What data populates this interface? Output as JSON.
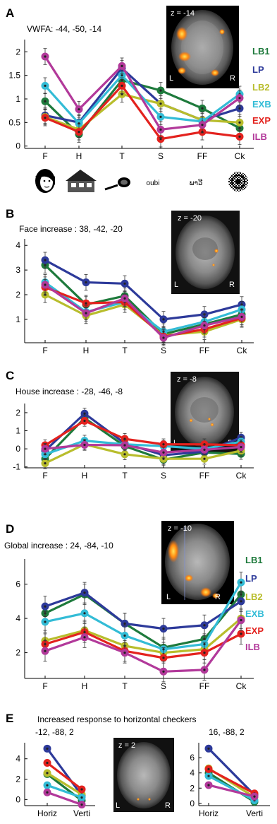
{
  "colors": {
    "LB1": "#1e7a3c",
    "LP": "#2d3a9a",
    "LB2": "#b8bd2c",
    "EXB": "#33bcd6",
    "EXP": "#e3221e",
    "ILB": "#b2399a"
  },
  "stim_icons": [
    "face-icon",
    "house-icon",
    "tool-icon",
    "oubi",
    "ພາວີ",
    "checkerboard-icon"
  ],
  "chart_data": [
    {
      "id": "A",
      "type": "line",
      "letter": "A",
      "title": "VWFA: -44, -50, -14",
      "brain_label": "z = -14",
      "brain_L": "L",
      "brain_R": "R",
      "categories": [
        "F",
        "H",
        "T",
        "S",
        "FF",
        "Ck"
      ],
      "yticks": [
        "0",
        "0.5",
        "1",
        "1.5",
        "2"
      ],
      "ylim": [
        -0.05,
        2.2
      ],
      "legend": [
        "LB1",
        "LP",
        "LB2",
        "EXB",
        "EXP",
        "ILB"
      ],
      "series": [
        {
          "name": "LB1",
          "values": [
            0.95,
            0.25,
            1.4,
            1.18,
            0.8,
            0.38
          ]
        },
        {
          "name": "LP",
          "values": [
            0.65,
            0.5,
            1.65,
            0.9,
            0.55,
            0.8
          ]
        },
        {
          "name": "LB2",
          "values": [
            0.62,
            0.35,
            1.1,
            0.9,
            0.55,
            0.5
          ]
        },
        {
          "name": "EXB",
          "values": [
            1.28,
            0.48,
            1.5,
            0.62,
            0.52,
            1.1
          ]
        },
        {
          "name": "EXP",
          "values": [
            0.6,
            0.3,
            1.28,
            0.15,
            0.3,
            0.2
          ]
        },
        {
          "name": "ILB",
          "values": [
            1.9,
            0.78,
            1.7,
            0.35,
            0.45,
            1.02
          ]
        }
      ]
    },
    {
      "id": "B",
      "type": "line",
      "letter": "B",
      "title": "Face increase : 38, -42, -20",
      "brain_label": "z = -20",
      "brain_L": "L",
      "brain_R": "R",
      "categories": [
        "F",
        "H",
        "T",
        "S",
        "FF",
        "Ck"
      ],
      "yticks": [
        "1",
        "2",
        "3",
        "4"
      ],
      "ylim": [
        0.05,
        4.15
      ],
      "legend": [],
      "series": [
        {
          "name": "LB1",
          "values": [
            3.2,
            1.6,
            1.95,
            0.4,
            0.8,
            1.2
          ]
        },
        {
          "name": "LP",
          "values": [
            3.4,
            2.5,
            2.45,
            1.0,
            1.2,
            1.6
          ]
        },
        {
          "name": "LB2",
          "values": [
            2.0,
            1.15,
            1.6,
            0.35,
            0.5,
            1.0
          ]
        },
        {
          "name": "EXB",
          "values": [
            2.5,
            1.3,
            1.7,
            0.5,
            0.9,
            1.4
          ]
        },
        {
          "name": "EXP",
          "values": [
            2.3,
            1.65,
            1.7,
            0.3,
            0.6,
            1.05
          ]
        },
        {
          "name": "ILB",
          "values": [
            2.4,
            1.25,
            1.85,
            0.25,
            0.75,
            1.1
          ]
        }
      ]
    },
    {
      "id": "C",
      "type": "line",
      "letter": "C",
      "title": "House increase : -28, -46, -8",
      "brain_label": "z = -8",
      "brain_L": "L",
      "brain_R": "R",
      "categories": [
        "F",
        "H",
        "T",
        "S",
        "FF",
        "Ck"
      ],
      "yticks": [
        "-1",
        "0",
        "1",
        "2"
      ],
      "ylim": [
        -1.05,
        2.35
      ],
      "legend": [],
      "series": [
        {
          "name": "LB1",
          "values": [
            -0.55,
            1.7,
            0.15,
            -0.6,
            -0.2,
            -0.28
          ]
        },
        {
          "name": "LP",
          "values": [
            -0.1,
            1.95,
            0.3,
            -0.35,
            -0.15,
            0.62
          ]
        },
        {
          "name": "LB2",
          "values": [
            -0.8,
            0.25,
            -0.3,
            -0.55,
            -0.55,
            -0.1
          ]
        },
        {
          "name": "EXB",
          "values": [
            -0.3,
            0.45,
            0.25,
            0.15,
            0.0,
            0.4
          ]
        },
        {
          "name": "EXP",
          "values": [
            0.2,
            1.55,
            0.55,
            0.25,
            0.25,
            0.2
          ]
        },
        {
          "name": "ILB",
          "values": [
            0.0,
            0.22,
            0.2,
            -0.2,
            -0.05,
            0.1
          ]
        }
      ]
    },
    {
      "id": "D",
      "type": "line",
      "letter": "D",
      "title": "Global increase : 24, -84, -10",
      "brain_label": "z = -10",
      "brain_L": "L",
      "brain_R": "R",
      "categories": [
        "F",
        "H",
        "T",
        "S",
        "FF",
        "Ck"
      ],
      "yticks": [
        "2",
        "4",
        "6"
      ],
      "ylim": [
        0.5,
        7.3
      ],
      "legend": [
        "LB1",
        "LP",
        "LB2",
        "EXB",
        "EXP",
        "ILB"
      ],
      "series": [
        {
          "name": "LB1",
          "values": [
            4.3,
            5.4,
            3.7,
            2.3,
            2.8,
            5.4
          ]
        },
        {
          "name": "LP",
          "values": [
            4.7,
            5.5,
            3.7,
            3.4,
            3.6,
            5.0
          ]
        },
        {
          "name": "LB2",
          "values": [
            2.7,
            3.3,
            2.4,
            2.0,
            2.2,
            4.0
          ]
        },
        {
          "name": "EXB",
          "values": [
            3.8,
            4.3,
            3.0,
            2.2,
            2.5,
            6.1
          ]
        },
        {
          "name": "EXP",
          "values": [
            2.5,
            3.2,
            2.1,
            1.7,
            2.0,
            3.1
          ]
        },
        {
          "name": "ILB",
          "values": [
            2.1,
            2.9,
            2.0,
            0.9,
            1.0,
            3.9
          ]
        }
      ]
    },
    {
      "id": "E1",
      "type": "line",
      "letter": "E",
      "title": "Increased response to horizontal checkers",
      "subtitle": "-12, -88, 2",
      "categories": [
        "Horiz",
        "Verti"
      ],
      "yticks": [
        "0",
        "2",
        "4"
      ],
      "ylim": [
        -0.6,
        5.3
      ],
      "legend": [],
      "series": [
        {
          "name": "LB1",
          "values": [
            2.5,
            -0.1
          ]
        },
        {
          "name": "LP",
          "values": [
            5.0,
            0.4
          ]
        },
        {
          "name": "LB2",
          "values": [
            2.6,
            0.5
          ]
        },
        {
          "name": "EXB",
          "values": [
            1.4,
            0.2
          ]
        },
        {
          "name": "EXP",
          "values": [
            3.6,
            1.0
          ]
        },
        {
          "name": "ILB",
          "values": [
            0.7,
            -0.5
          ]
        }
      ]
    },
    {
      "id": "E2",
      "type": "line",
      "subtitle": "16, -88, 2",
      "brain_label": "z = 2",
      "brain_L": "L",
      "brain_R": "R",
      "categories": [
        "Horiz",
        "Verti"
      ],
      "yticks": [
        "0",
        "2",
        "4",
        "6"
      ],
      "ylim": [
        -0.3,
        7.6
      ],
      "legend": [],
      "series": [
        {
          "name": "LB1",
          "values": [
            4.0,
            0.2
          ]
        },
        {
          "name": "LP",
          "values": [
            7.2,
            1.1
          ]
        },
        {
          "name": "LB2",
          "values": [
            4.6,
            0.8
          ]
        },
        {
          "name": "EXB",
          "values": [
            3.6,
            0.4
          ]
        },
        {
          "name": "EXP",
          "values": [
            4.5,
            1.3
          ]
        },
        {
          "name": "ILB",
          "values": [
            2.4,
            0.9
          ]
        }
      ]
    }
  ]
}
